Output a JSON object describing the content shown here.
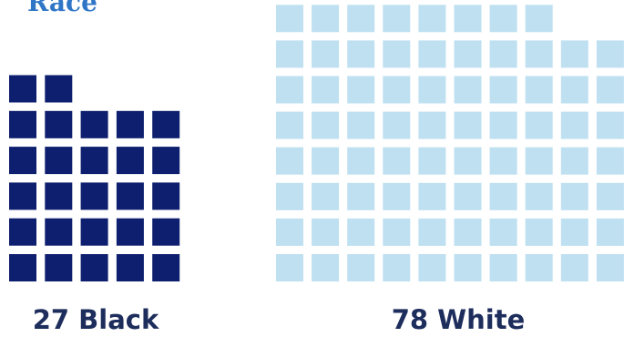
{
  "chart_data": {
    "type": "waffle",
    "title": "Race",
    "series": [
      {
        "name": "Black",
        "value": 27,
        "label": "27 Black",
        "color": "#0d1f6e"
      },
      {
        "name": "White",
        "value": 78,
        "label": "78 White",
        "color": "#bfe0f1"
      }
    ],
    "label_color": "#1d2d5c",
    "title_color": "#2f76c7"
  }
}
